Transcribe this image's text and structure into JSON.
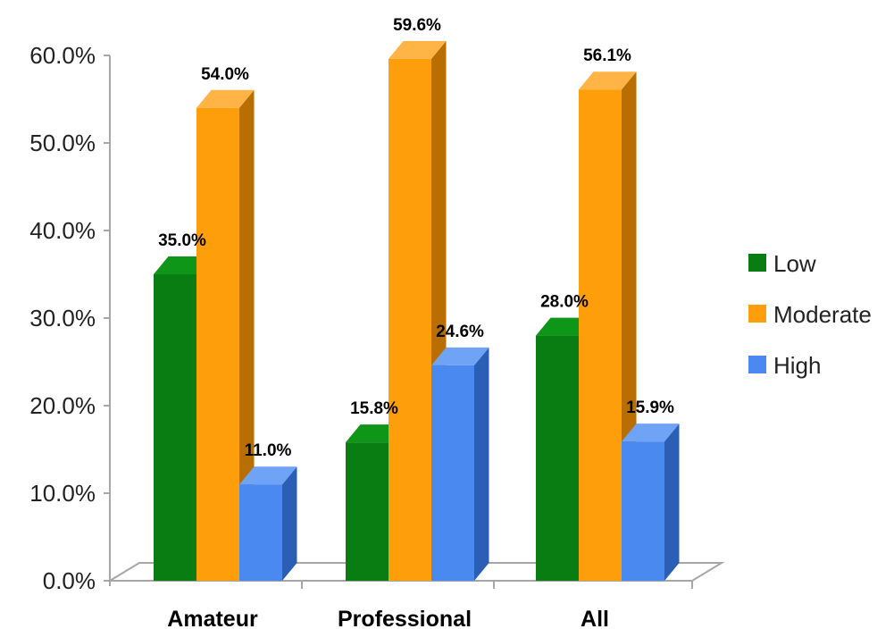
{
  "chart_data": {
    "type": "bar",
    "categories": [
      "Amateur",
      "Professional",
      "All"
    ],
    "series": [
      {
        "name": "Low",
        "values": [
          35.0,
          15.8,
          28.0
        ],
        "labels": [
          "35.0%",
          "15.8%",
          "28.0%"
        ]
      },
      {
        "name": "Moderate",
        "values": [
          54.0,
          59.6,
          56.1
        ],
        "labels": [
          "54.0%",
          "59.6%",
          "56.1%"
        ]
      },
      {
        "name": "High",
        "values": [
          11.0,
          24.6,
          15.9
        ],
        "labels": [
          "11.0%",
          "24.6%",
          "15.9%"
        ]
      }
    ],
    "title": "",
    "xlabel": "",
    "ylabel": "",
    "ylim": [
      0,
      60
    ],
    "yticks": [
      "0.0%",
      "10.0%",
      "20.0%",
      "30.0%",
      "40.0%",
      "50.0%",
      "60.0%"
    ],
    "grid": false,
    "legend_position": "right",
    "three_d": true,
    "colors": {
      "Low": {
        "front": "#0a7d12",
        "side": "#055a0b",
        "top": "#0d9617"
      },
      "Moderate": {
        "front": "#ff9e0b",
        "side": "#b86e00",
        "top": "#ffb445"
      },
      "High": {
        "front": "#4a8af0",
        "side": "#2a5fb5",
        "top": "#6fa3f5"
      }
    }
  }
}
